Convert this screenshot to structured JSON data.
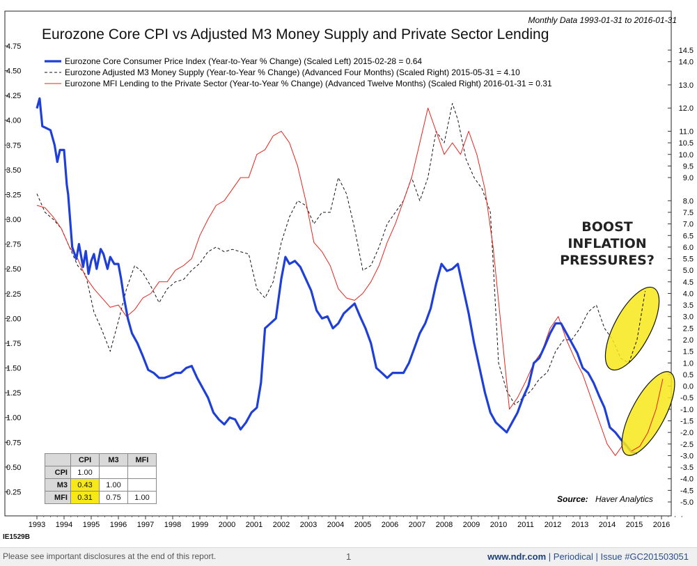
{
  "header": {
    "period_note": "Monthly Data 1993-01-31 to 2016-01-31",
    "title": "Eurozone Core CPI vs Adjusted M3 Money Supply and Private Sector Lending"
  },
  "annotation": {
    "lines": [
      "BOOST",
      "INFLATION",
      "PRESSURES?"
    ]
  },
  "source": {
    "label": "Source:",
    "name": "Haver Analytics"
  },
  "code": "IE1529B",
  "footer": {
    "disclosure": "Please see important disclosures at the end of this report.",
    "page": "1",
    "site": "www.ndr.com",
    "sep1": "|",
    "periodical": "Periodical",
    "sep2": "|",
    "issue": "Issue #GC201503051"
  },
  "correlation_table": {
    "headers": [
      "",
      "CPI",
      "M3",
      "MFI"
    ],
    "rows": [
      {
        "label": "CPI",
        "values": [
          "1.00",
          "",
          ""
        ]
      },
      {
        "label": "M3",
        "values": [
          "0.43",
          "1.00",
          ""
        ]
      },
      {
        "label": "MFI",
        "values": [
          "0.31",
          "0.75",
          "1.00"
        ]
      }
    ]
  },
  "colors": {
    "cpi": "#1e3fd8",
    "m3": "#111111",
    "mfi": "#e8231c",
    "highlight": "#f7e81a"
  },
  "chart_data": {
    "type": "line",
    "title": "Eurozone Core CPI vs Adjusted M3 Money Supply and Private Sector Lending",
    "x_ticks": [
      "1993",
      "1994",
      "1995",
      "1996",
      "1997",
      "1998",
      "1999",
      "2000",
      "2001",
      "2002",
      "2003",
      "2004",
      "2005",
      "2006",
      "2007",
      "2008",
      "2009",
      "2010",
      "2011",
      "2012",
      "2013",
      "2014",
      "2015",
      "2016"
    ],
    "x_range": [
      1993.0,
      2016.3
    ],
    "y_left": {
      "range": [
        0.0,
        4.75
      ],
      "ticks": [
        "4.75",
        "4.50",
        "4.25",
        "4.00",
        "3.75",
        "3.50",
        "3.25",
        "3.00",
        "2.75",
        "2.50",
        "2.25",
        "2.00",
        "1.75",
        "1.50",
        "1.25",
        "1.00",
        "0.75",
        "0.50",
        "0.25"
      ]
    },
    "y_right": {
      "range": [
        -5.5,
        15.0
      ],
      "ticks": [
        "14.5",
        "14.0",
        "13.0",
        "12.0",
        "11.0",
        "10.5",
        "10.0",
        "9.5",
        "9.0",
        "8.0",
        "7.5",
        "7.0",
        "6.5",
        "6.0",
        "5.5",
        "5.0",
        "4.5",
        "4.0",
        "3.5",
        "3.0",
        "2.5",
        "2.0",
        "1.5",
        "1.0",
        "0.5",
        "0.0",
        "-0.5",
        "-1.0",
        "-1.5",
        "-2.0",
        "-2.5",
        "-3.0",
        "-3.5",
        "-4.0",
        "-4.5",
        "-5.0"
      ]
    },
    "series": [
      {
        "name": "Eurozone Core Consumer Price Index (Year-to-Year % Change) (Scaled Left) 2015-02-28 = 0.64",
        "axis": "left",
        "style": "thick",
        "x": [
          1993.0,
          1993.1,
          1993.2,
          1993.35,
          1993.5,
          1993.65,
          1993.75,
          1993.85,
          1994.0,
          1994.1,
          1994.15,
          1994.3,
          1994.45,
          1994.55,
          1994.7,
          1994.8,
          1994.9,
          1995.0,
          1995.1,
          1995.2,
          1995.35,
          1995.45,
          1995.6,
          1995.7,
          1995.85,
          1996.0,
          1996.1,
          1996.2,
          1996.35,
          1996.5,
          1996.7,
          1996.9,
          1997.1,
          1997.3,
          1997.5,
          1997.7,
          1997.9,
          1998.1,
          1998.3,
          1998.5,
          1998.7,
          1998.9,
          1999.1,
          1999.3,
          1999.5,
          1999.7,
          1999.9,
          2000.1,
          2000.3,
          2000.5,
          2000.7,
          2000.9,
          2001.1,
          2001.25,
          2001.4,
          2001.6,
          2001.8,
          2002.0,
          2002.15,
          2002.3,
          2002.5,
          2002.7,
          2002.9,
          2003.1,
          2003.3,
          2003.5,
          2003.7,
          2003.9,
          2004.1,
          2004.3,
          2004.5,
          2004.7,
          2004.9,
          2005.1,
          2005.3,
          2005.5,
          2005.7,
          2005.9,
          2006.1,
          2006.3,
          2006.5,
          2006.7,
          2006.9,
          2007.1,
          2007.3,
          2007.5,
          2007.7,
          2007.9,
          2008.1,
          2008.3,
          2008.5,
          2008.7,
          2008.9,
          2009.1,
          2009.3,
          2009.5,
          2009.7,
          2009.9,
          2010.1,
          2010.3,
          2010.5,
          2010.7,
          2010.9,
          2011.1,
          2011.3,
          2011.5,
          2011.7,
          2011.9,
          2012.1,
          2012.3,
          2012.5,
          2012.7,
          2012.9,
          2013.1,
          2013.3,
          2013.5,
          2013.7,
          2013.9,
          2014.1,
          2014.3,
          2014.5,
          2014.7,
          2014.9,
          2015.1
        ],
        "y": [
          4.12,
          4.22,
          3.94,
          3.92,
          3.9,
          3.75,
          3.58,
          3.7,
          3.7,
          3.35,
          3.25,
          2.72,
          2.6,
          2.75,
          2.52,
          2.68,
          2.45,
          2.58,
          2.65,
          2.5,
          2.7,
          2.65,
          2.5,
          2.62,
          2.55,
          2.55,
          2.4,
          2.22,
          2.0,
          1.85,
          1.75,
          1.62,
          1.48,
          1.45,
          1.4,
          1.4,
          1.42,
          1.45,
          1.45,
          1.5,
          1.52,
          1.4,
          1.3,
          1.2,
          1.05,
          0.98,
          0.93,
          1.0,
          0.98,
          0.88,
          0.95,
          1.05,
          1.1,
          1.35,
          1.9,
          1.95,
          2.0,
          2.4,
          2.62,
          2.55,
          2.58,
          2.52,
          2.4,
          2.28,
          2.08,
          2.0,
          2.02,
          1.9,
          1.95,
          2.05,
          2.1,
          2.15,
          2.02,
          1.9,
          1.75,
          1.5,
          1.45,
          1.4,
          1.45,
          1.45,
          1.45,
          1.55,
          1.7,
          1.85,
          1.95,
          2.1,
          2.35,
          2.55,
          2.48,
          2.5,
          2.55,
          2.3,
          2.05,
          1.75,
          1.5,
          1.25,
          1.05,
          0.95,
          0.9,
          0.85,
          0.95,
          1.05,
          1.2,
          1.32,
          1.55,
          1.6,
          1.72,
          1.85,
          1.95,
          1.95,
          1.85,
          1.75,
          1.65,
          1.5,
          1.45,
          1.35,
          1.22,
          1.1,
          0.9,
          0.85,
          0.78,
          0.72,
          0.65,
          0.64
        ]
      },
      {
        "name": "Eurozone Adjusted M3 Money Supply (Year-to-Year % Change) (Advanced Four Months) (Scaled Right) 2015-05-31 = 4.10",
        "axis": "right",
        "style": "dashed",
        "x": [
          1993.0,
          1993.3,
          1993.6,
          1993.9,
          1994.2,
          1994.5,
          1994.8,
          1995.1,
          1995.4,
          1995.7,
          1996.0,
          1996.3,
          1996.6,
          1996.9,
          1997.2,
          1997.5,
          1997.8,
          1998.1,
          1998.4,
          1998.7,
          1999.0,
          1999.3,
          1999.6,
          1999.9,
          2000.2,
          2000.5,
          2000.8,
          2001.1,
          2001.4,
          2001.7,
          2002.0,
          2002.3,
          2002.6,
          2002.9,
          2003.2,
          2003.5,
          2003.8,
          2004.1,
          2004.4,
          2004.7,
          2005.0,
          2005.3,
          2005.6,
          2005.9,
          2006.2,
          2006.5,
          2006.8,
          2007.1,
          2007.4,
          2007.7,
          2008.0,
          2008.3,
          2008.5,
          2008.8,
          2009.1,
          2009.4,
          2009.7,
          2010.0,
          2010.3,
          2010.6,
          2010.9,
          2011.2,
          2011.5,
          2011.8,
          2012.1,
          2012.4,
          2012.7,
          2013.0,
          2013.3,
          2013.6,
          2013.9,
          2014.2,
          2014.5,
          2014.8,
          2015.1,
          2015.4
        ],
        "y": [
          8.3,
          7.5,
          7.2,
          6.8,
          6.0,
          5.2,
          4.8,
          3.2,
          2.4,
          1.5,
          2.8,
          4.2,
          5.2,
          4.9,
          4.3,
          3.6,
          4.2,
          4.5,
          4.6,
          5.0,
          5.3,
          5.8,
          6.0,
          5.8,
          5.9,
          5.8,
          5.7,
          4.2,
          3.8,
          4.5,
          6.2,
          7.3,
          8.0,
          7.8,
          7.0,
          7.5,
          7.5,
          9.0,
          8.3,
          6.8,
          5.0,
          5.2,
          6.0,
          7.0,
          7.5,
          8.0,
          9.0,
          8.0,
          9.0,
          11.0,
          10.5,
          12.2,
          11.5,
          9.8,
          9.0,
          8.5,
          7.5,
          1.0,
          -0.2,
          -0.8,
          -0.5,
          -0.2,
          0.3,
          0.6,
          1.5,
          2.0,
          2.0,
          2.5,
          3.2,
          3.5,
          2.5,
          2.0,
          1.2,
          1.0,
          2.0,
          4.1
        ]
      },
      {
        "name": "Eurozone MFI Lending to the Private Sector (Year-to-Year % Change) (Advanced Twelve Months) (Scaled Right) 2016-01-31 = 0.31",
        "axis": "right",
        "style": "thin",
        "x": [
          1993.0,
          1993.3,
          1993.6,
          1993.9,
          1994.2,
          1994.5,
          1994.8,
          1995.1,
          1995.4,
          1995.7,
          1996.0,
          1996.3,
          1996.6,
          1996.9,
          1997.2,
          1997.5,
          1997.8,
          1998.1,
          1998.4,
          1998.7,
          1999.0,
          1999.3,
          1999.6,
          1999.9,
          2000.2,
          2000.5,
          2000.8,
          2001.1,
          2001.4,
          2001.7,
          2002.0,
          2002.3,
          2002.6,
          2002.9,
          2003.2,
          2003.5,
          2003.8,
          2004.1,
          2004.4,
          2004.7,
          2005.0,
          2005.3,
          2005.6,
          2005.9,
          2006.2,
          2006.5,
          2006.8,
          2007.1,
          2007.4,
          2007.7,
          2008.0,
          2008.3,
          2008.6,
          2008.9,
          2009.2,
          2009.5,
          2009.8,
          2010.1,
          2010.4,
          2010.7,
          2011.0,
          2011.3,
          2011.6,
          2011.9,
          2012.2,
          2012.5,
          2012.8,
          2013.1,
          2013.4,
          2013.7,
          2014.0,
          2014.3,
          2014.6,
          2014.9,
          2015.2,
          2015.5,
          2015.8,
          2016.05
        ],
        "y": [
          7.8,
          7.7,
          7.3,
          6.8,
          6.0,
          5.5,
          4.7,
          4.2,
          3.8,
          3.4,
          3.5,
          3.0,
          3.3,
          3.8,
          4.0,
          4.5,
          4.5,
          5.0,
          5.2,
          5.5,
          6.5,
          7.2,
          7.8,
          8.0,
          8.5,
          9.0,
          9.0,
          10.0,
          10.2,
          10.8,
          11.0,
          10.5,
          9.5,
          8.0,
          6.2,
          5.8,
          5.2,
          4.2,
          3.8,
          3.7,
          4.0,
          4.5,
          5.2,
          6.2,
          7.0,
          8.0,
          9.0,
          10.5,
          12.0,
          11.0,
          10.0,
          10.5,
          10.0,
          11.0,
          10.0,
          8.5,
          6.0,
          2.5,
          -1.0,
          -0.5,
          0.2,
          1.0,
          1.5,
          2.5,
          3.0,
          2.0,
          1.2,
          0.5,
          -0.5,
          -1.5,
          -2.5,
          -3.0,
          -2.5,
          -2.8,
          -2.6,
          -2.0,
          -1.0,
          0.31
        ]
      }
    ],
    "highlight_ellipses": [
      {
        "series": "m3",
        "x_center": 2015.0,
        "y_center_right": 2.5
      },
      {
        "series": "mfi",
        "x_center": 2015.2,
        "y_center_right": -1.5
      }
    ]
  }
}
